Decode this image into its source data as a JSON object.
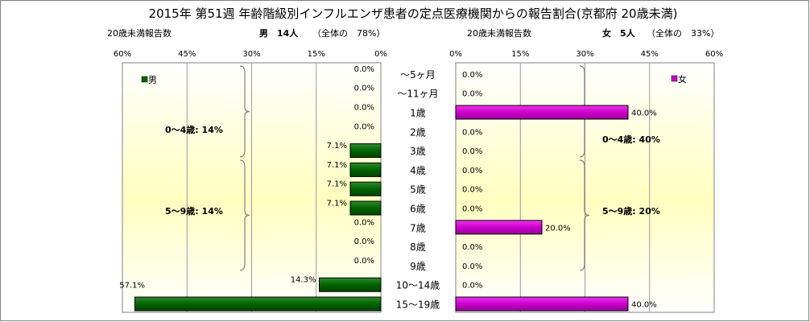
{
  "chart_data": {
    "type": "bar",
    "title": "2015年 第51週 年齢階級別インフルエンザ患者の定点医療機関からの報告割合(京都府 20歳未満)",
    "categories": [
      "～5ヶ月",
      "～11ヶ月",
      "1歳",
      "2歳",
      "3歳",
      "4歳",
      "5歳",
      "6歳",
      "7歳",
      "8歳",
      "9歳",
      "10～14歳",
      "15～19歳"
    ],
    "xlim": [
      0,
      60
    ],
    "ticks": [
      "0%",
      "15%",
      "30%",
      "45%",
      "60%"
    ],
    "panels": {
      "male": {
        "legend": "男",
        "header_left": "20歳未満報告数",
        "header_main": "男　14人",
        "header_share": "（全体の　78%）",
        "color": "#006400",
        "values": [
          0.0,
          0.0,
          0.0,
          0.0,
          7.1,
          7.1,
          7.1,
          7.1,
          0.0,
          0.0,
          0.0,
          14.3,
          57.1
        ],
        "labels": [
          "0.0%",
          "0.0%",
          "0.0%",
          "0.0%",
          "7.1%",
          "7.1%",
          "7.1%",
          "7.1%",
          "0.0%",
          "0.0%",
          "0.0%",
          "14.3%",
          "57.1%"
        ],
        "group_labels": [
          "0～4歳: 14%",
          "5～9歳: 14%"
        ]
      },
      "female": {
        "legend": "女",
        "header_left": "20歳未満報告数",
        "header_main": "女　5人",
        "header_share": "（全体の　33%）",
        "color": "#cc00cc",
        "values": [
          0.0,
          0.0,
          40.0,
          0.0,
          0.0,
          0.0,
          0.0,
          0.0,
          20.0,
          0.0,
          0.0,
          0.0,
          40.0
        ],
        "labels": [
          "0.0%",
          "0.0%",
          "40.0%",
          "0.0%",
          "0.0%",
          "0.0%",
          "0.0%",
          "0.0%",
          "20.0%",
          "0.0%",
          "0.0%",
          "0.0%",
          "40.0%"
        ],
        "group_labels": [
          "0～4歳: 40%",
          "5～9歳: 20%"
        ]
      }
    },
    "grid": true
  }
}
